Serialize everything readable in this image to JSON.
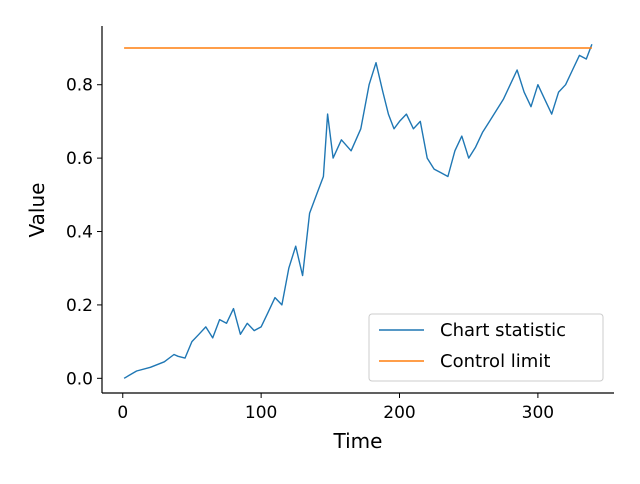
{
  "chart_data": {
    "type": "line",
    "title": "",
    "xlabel": "Time",
    "ylabel": "Value",
    "xlim": [
      -15,
      355
    ],
    "ylim": [
      -0.04,
      0.96
    ],
    "xticks": [
      0,
      100,
      200,
      300
    ],
    "yticks": [
      0.0,
      0.2,
      0.4,
      0.6,
      0.8
    ],
    "xtick_labels": [
      "0",
      "100",
      "200",
      "300"
    ],
    "ytick_labels": [
      "0.0",
      "0.2",
      "0.4",
      "0.6",
      "0.8"
    ],
    "grid": false,
    "legend_position": "lower-right",
    "series": [
      {
        "name": "Chart statistic",
        "color": "#1f77b4",
        "x": [
          1,
          10,
          20,
          30,
          37,
          40,
          45,
          50,
          55,
          60,
          65,
          70,
          75,
          80,
          85,
          90,
          95,
          100,
          105,
          110,
          115,
          120,
          125,
          130,
          135,
          140,
          145,
          148,
          152,
          158,
          165,
          172,
          178,
          183,
          188,
          192,
          196,
          200,
          205,
          210,
          215,
          220,
          225,
          230,
          235,
          240,
          245,
          250,
          255,
          260,
          265,
          270,
          275,
          280,
          285,
          290,
          295,
          300,
          305,
          310,
          315,
          320,
          325,
          330,
          335,
          339
        ],
        "y": [
          0.0,
          0.02,
          0.03,
          0.045,
          0.065,
          0.06,
          0.055,
          0.1,
          0.12,
          0.14,
          0.11,
          0.16,
          0.15,
          0.19,
          0.12,
          0.15,
          0.13,
          0.14,
          0.18,
          0.22,
          0.2,
          0.3,
          0.36,
          0.28,
          0.45,
          0.5,
          0.55,
          0.72,
          0.6,
          0.65,
          0.62,
          0.68,
          0.8,
          0.86,
          0.78,
          0.72,
          0.68,
          0.7,
          0.72,
          0.68,
          0.7,
          0.6,
          0.57,
          0.56,
          0.55,
          0.62,
          0.66,
          0.6,
          0.63,
          0.67,
          0.7,
          0.73,
          0.76,
          0.8,
          0.84,
          0.78,
          0.74,
          0.8,
          0.76,
          0.72,
          0.78,
          0.8,
          0.84,
          0.88,
          0.87,
          0.91
        ]
      },
      {
        "name": "Control limit",
        "color": "#ff7f0e",
        "x": [
          1,
          339
        ],
        "y": [
          0.9,
          0.9
        ]
      }
    ]
  }
}
